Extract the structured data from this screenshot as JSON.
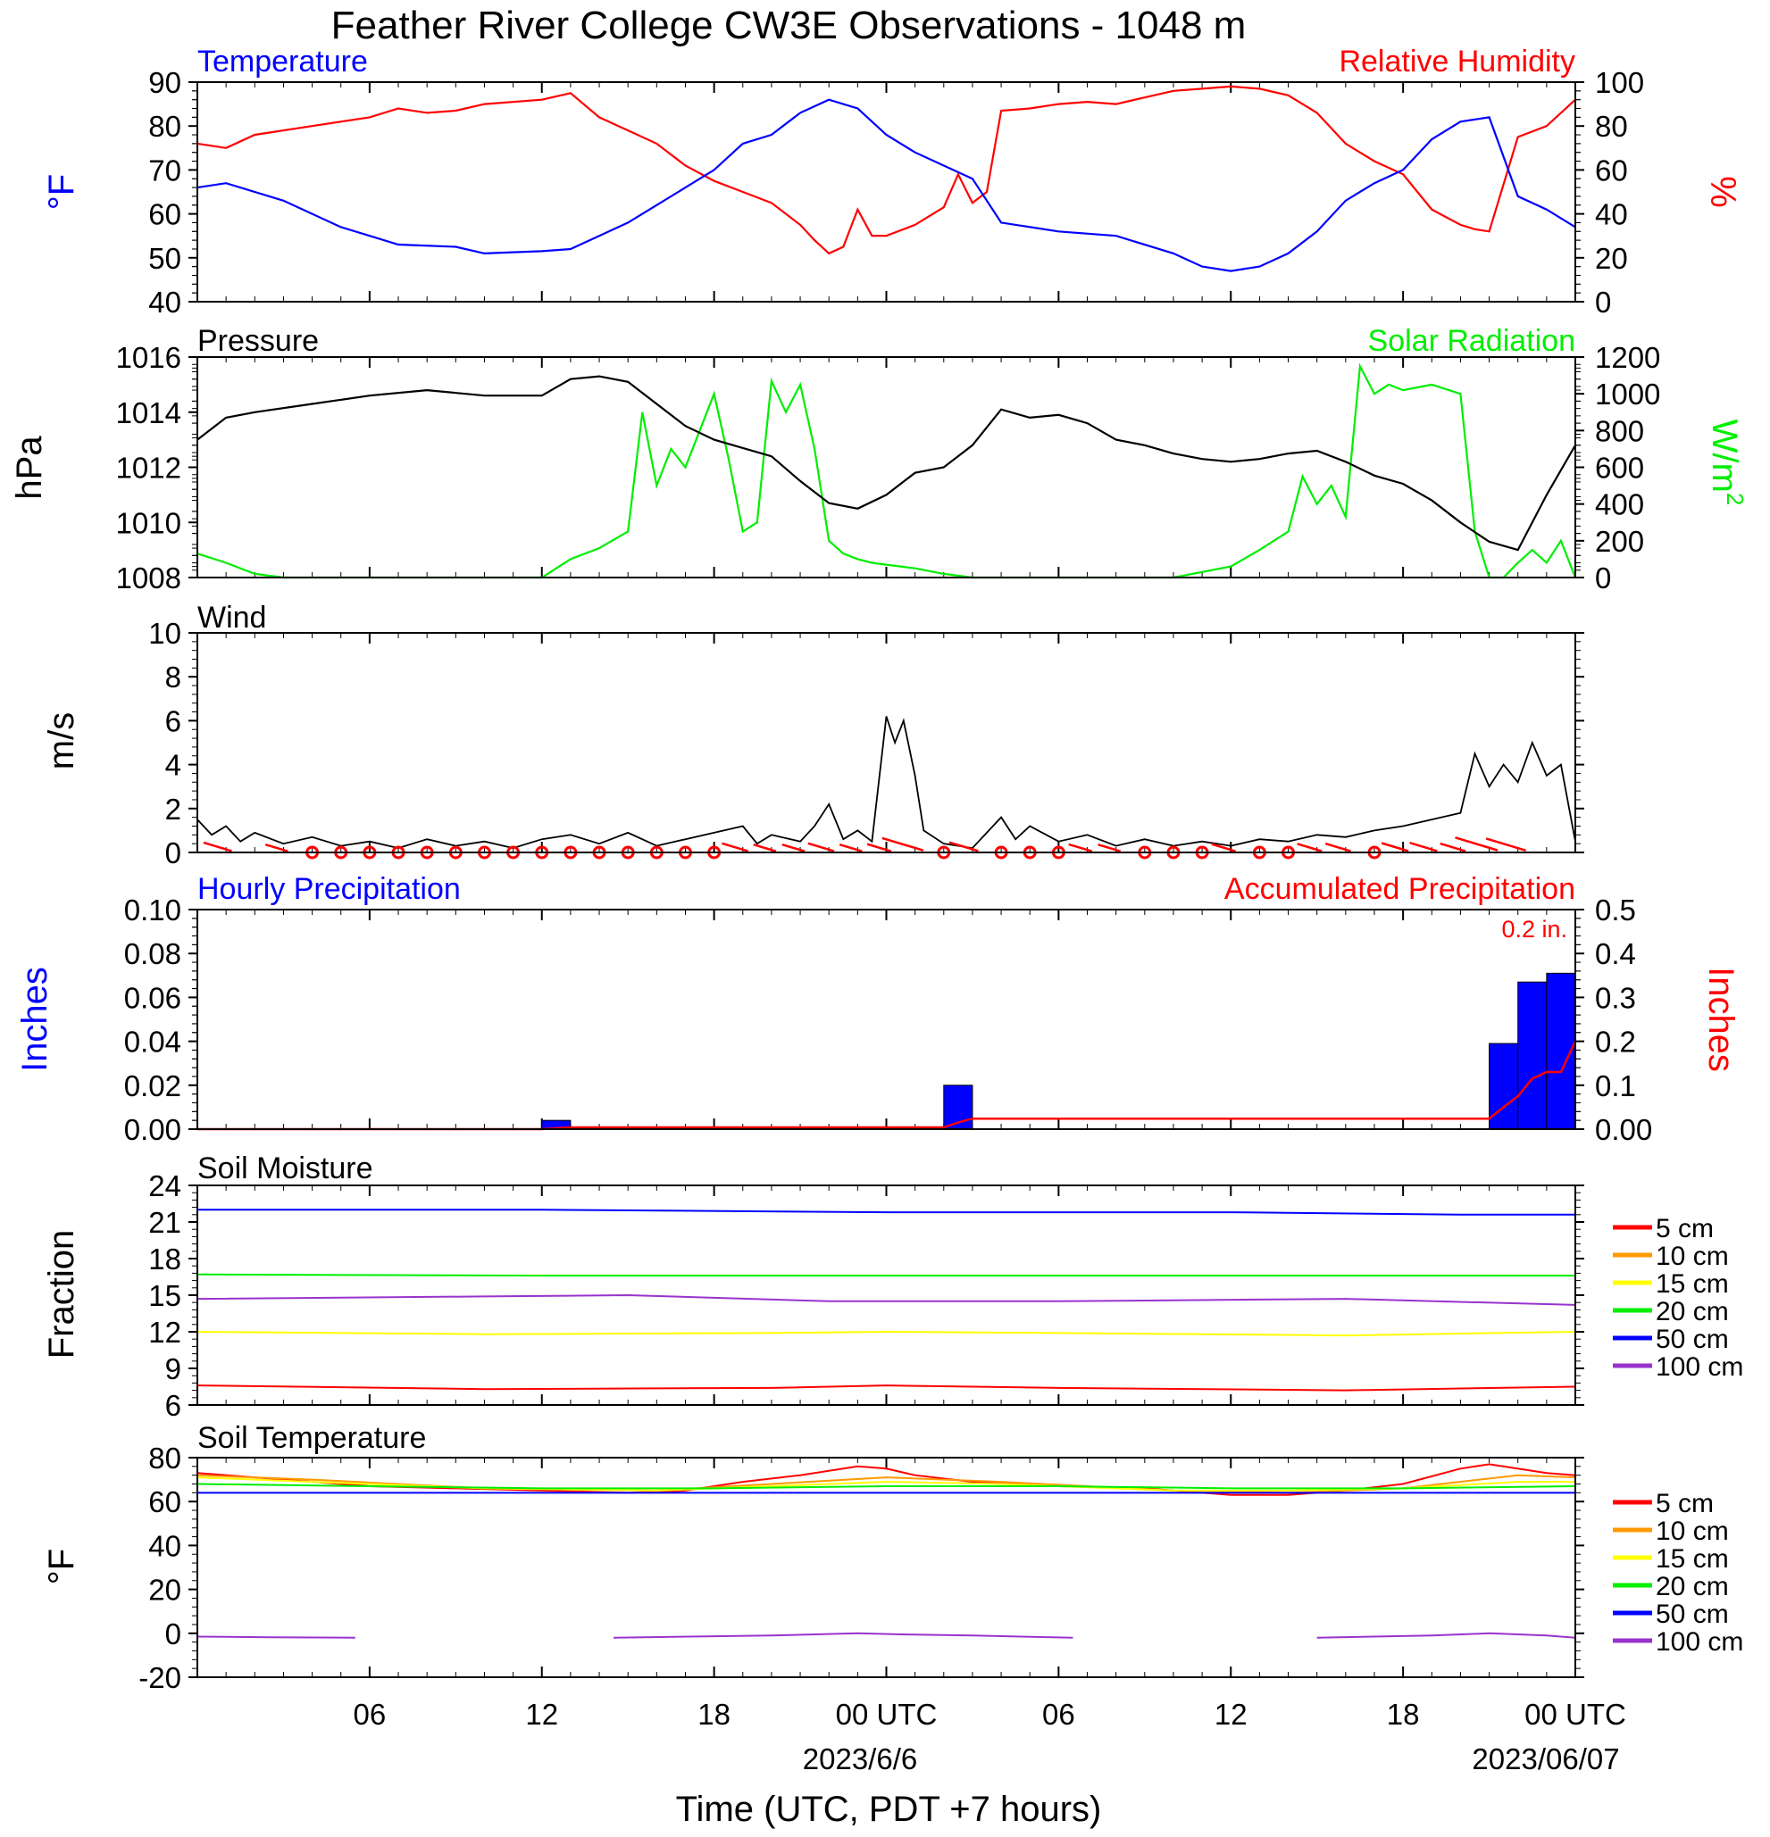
{
  "page_title": "Feather River College CW3E Observations - 1048 m",
  "xaxis": {
    "ticks": [
      "06",
      "12",
      "18",
      "00 UTC",
      "06",
      "12",
      "18",
      "00 UTC"
    ],
    "dates": [
      "2023/6/6",
      "2023/06/07"
    ],
    "label": "Time (UTC, PDT +7 hours)",
    "range_hours": [
      0,
      48
    ]
  },
  "legend_soil": [
    "5 cm",
    "10 cm",
    "15 cm",
    "20 cm",
    "50 cm",
    "100 cm"
  ],
  "colors": {
    "5cm": "#ff0000",
    "10cm": "#ff9900",
    "15cm": "#ffff00",
    "20cm": "#00ee00",
    "50cm": "#0000ff",
    "100cm": "#9933cc",
    "temperature": "#0000ff",
    "humidity": "#ff0000",
    "pressure": "#000000",
    "solar": "#00ee00",
    "wind": "#000000",
    "wind_barb": "#ff0000"
  },
  "chart_data": [
    {
      "type": "line",
      "title_left": "Temperature",
      "title_right": "Relative Humidity",
      "ylabel_left": "°F",
      "ylabel_right": "%",
      "ylim_left": [
        40,
        90
      ],
      "ylim_right": [
        0,
        100
      ],
      "yticks_left": [
        "40",
        "50",
        "60",
        "70",
        "80",
        "90"
      ],
      "yticks_right": [
        "0",
        "20",
        "40",
        "60",
        "80",
        "100"
      ],
      "series": [
        {
          "name": "Temperature",
          "axis": "left",
          "x": [
            0,
            1,
            3,
            5,
            6,
            7,
            9,
            10,
            12,
            13,
            14,
            15,
            16,
            17,
            18,
            19,
            20,
            21,
            22,
            23,
            24,
            25,
            26,
            27,
            28,
            30,
            32,
            34,
            35,
            36,
            37,
            38,
            39,
            40,
            41,
            42,
            43,
            44,
            45,
            46,
            47,
            48
          ],
          "y": [
            66,
            67,
            63,
            57,
            55,
            53,
            52.5,
            51,
            51.5,
            52,
            55,
            58,
            62,
            66,
            70,
            76,
            78,
            83,
            86,
            84,
            78,
            74,
            71,
            68,
            58,
            56,
            55,
            51,
            48,
            47,
            48,
            51,
            56,
            63,
            67,
            70,
            77,
            81,
            82,
            64,
            61,
            57
          ]
        },
        {
          "name": "Relative Humidity",
          "axis": "right",
          "x": [
            0,
            1,
            2,
            4,
            6,
            7,
            8,
            9,
            10,
            12,
            13,
            14,
            15,
            16,
            17,
            18,
            19,
            20,
            21,
            21.5,
            22,
            22.5,
            23,
            23.5,
            24,
            25,
            26,
            26.5,
            27,
            27.5,
            28,
            29,
            30,
            31,
            32,
            33,
            34,
            35,
            36,
            37,
            38,
            39,
            40,
            41,
            42,
            43,
            44,
            44.5,
            45,
            46,
            47,
            48
          ],
          "y": [
            72,
            70,
            76,
            80,
            84,
            88,
            86,
            87,
            90,
            92,
            95,
            84,
            78,
            72,
            62,
            55,
            50,
            45,
            35,
            28,
            22,
            25,
            42,
            30,
            30,
            35,
            43,
            58,
            45,
            50,
            87,
            88,
            90,
            91,
            90,
            93,
            96,
            97,
            98,
            97,
            94,
            86,
            72,
            64,
            58,
            42,
            35,
            33,
            32,
            75,
            80,
            92
          ]
        }
      ]
    },
    {
      "type": "line",
      "title_left": "Pressure",
      "title_right": "Solar Radiation",
      "ylabel_left": "hPa",
      "ylabel_right": "W/m",
      "ylabel_right_sup": "2",
      "ylim_left": [
        1008,
        1016
      ],
      "ylim_right": [
        0,
        1200
      ],
      "yticks_left": [
        "1008",
        "1010",
        "1012",
        "1014",
        "1016"
      ],
      "yticks_right": [
        "0",
        "200",
        "400",
        "600",
        "800",
        "1000",
        "1200"
      ],
      "series": [
        {
          "name": "Pressure",
          "axis": "left",
          "x": [
            0,
            1,
            2,
            4,
            6,
            8,
            10,
            12,
            13,
            14,
            15,
            16,
            17,
            18,
            19,
            20,
            21,
            22,
            23,
            24,
            25,
            26,
            27,
            28,
            29,
            30,
            31,
            32,
            33,
            34,
            35,
            36,
            37,
            38,
            39,
            40,
            41,
            42,
            43,
            44,
            45,
            46,
            47,
            48
          ],
          "y": [
            1013,
            1013.8,
            1014,
            1014.3,
            1014.6,
            1014.8,
            1014.6,
            1014.6,
            1015.2,
            1015.3,
            1015.1,
            1014.3,
            1013.5,
            1013,
            1012.7,
            1012.4,
            1011.5,
            1010.7,
            1010.5,
            1011,
            1011.8,
            1012.0,
            1012.8,
            1014.1,
            1013.8,
            1013.9,
            1013.6,
            1013.0,
            1012.8,
            1012.5,
            1012.3,
            1012.2,
            1012.3,
            1012.5,
            1012.6,
            1012.2,
            1011.7,
            1011.4,
            1010.8,
            1010.0,
            1009.3,
            1009.0,
            1011.0,
            1012.8
          ]
        },
        {
          "name": "Solar Radiation",
          "axis": "right",
          "x": [
            0,
            1,
            2,
            3,
            5,
            7,
            10,
            12,
            13,
            14,
            15,
            15.5,
            16,
            16.5,
            17,
            17.5,
            18,
            18.5,
            19,
            19.5,
            20,
            20.5,
            21,
            21.5,
            22,
            22.5,
            23,
            23.5,
            24,
            25,
            26,
            27,
            28,
            30,
            32,
            34,
            36,
            37,
            38,
            38.5,
            39,
            39.5,
            40,
            40.5,
            41,
            41.5,
            42,
            43,
            44,
            44.5,
            45,
            45.5,
            46,
            46.5,
            47,
            47.5,
            48
          ],
          "y": [
            130,
            80,
            20,
            0,
            0,
            0,
            0,
            0,
            100,
            160,
            250,
            900,
            500,
            700,
            600,
            800,
            1000,
            650,
            250,
            300,
            1070,
            900,
            1050,
            700,
            200,
            130,
            100,
            80,
            70,
            50,
            20,
            0,
            0,
            0,
            0,
            0,
            60,
            150,
            250,
            550,
            400,
            500,
            330,
            1150,
            1000,
            1050,
            1020,
            1050,
            1000,
            250,
            0,
            0,
            80,
            150,
            80,
            200,
            0
          ]
        }
      ]
    },
    {
      "type": "line",
      "title_left": "Wind",
      "ylabel_left": "m/s",
      "ylim_left": [
        0,
        10
      ],
      "yticks_left": [
        "0",
        "2",
        "4",
        "6",
        "8",
        "10"
      ],
      "series": [
        {
          "name": "Wind",
          "axis": "left",
          "x": [
            0,
            0.5,
            1,
            1.5,
            2,
            3,
            4,
            5,
            6,
            7,
            8,
            9,
            10,
            11,
            12,
            13,
            14,
            15,
            16,
            17,
            18,
            19,
            19.5,
            20,
            21,
            21.5,
            22,
            22.5,
            23,
            23.5,
            24,
            24.3,
            24.6,
            25,
            25.3,
            26,
            27,
            28,
            28.5,
            29,
            30,
            31,
            32,
            33,
            34,
            35,
            36,
            37,
            38,
            39,
            40,
            41,
            42,
            43,
            44,
            44.5,
            45,
            45.5,
            46,
            46.5,
            47,
            47.5,
            48
          ],
          "y": [
            1.5,
            0.8,
            1.2,
            0.5,
            0.9,
            0.4,
            0.7,
            0.3,
            0.5,
            0.2,
            0.6,
            0.3,
            0.5,
            0.2,
            0.6,
            0.8,
            0.4,
            0.9,
            0.3,
            0.6,
            0.9,
            1.2,
            0.4,
            0.8,
            0.5,
            1.2,
            2.2,
            0.6,
            1.0,
            0.5,
            6.2,
            5.0,
            6.0,
            3.5,
            1.0,
            0.4,
            0.2,
            1.6,
            0.6,
            1.2,
            0.5,
            0.8,
            0.3,
            0.6,
            0.3,
            0.5,
            0.3,
            0.6,
            0.5,
            0.8,
            0.7,
            1.0,
            1.2,
            1.5,
            1.8,
            4.5,
            3.0,
            4.0,
            3.2,
            5.0,
            3.5,
            4.0,
            0.5
          ]
        }
      ],
      "barbs_x": [
        1,
        3,
        4,
        5,
        6,
        7,
        8,
        9,
        10,
        11,
        12,
        13,
        14,
        15,
        16,
        17,
        18,
        19,
        20,
        21,
        22,
        23,
        24,
        25,
        26,
        27,
        28,
        29,
        30,
        31,
        32,
        33,
        34,
        35,
        36,
        37,
        38,
        39,
        40,
        41,
        42,
        43,
        44,
        45,
        46
      ],
      "barbs_speed": [
        1.2,
        0.4,
        0.2,
        0.1,
        0,
        0,
        0,
        0,
        0,
        0,
        0,
        0,
        0,
        0.2,
        0,
        0,
        0.3,
        0.9,
        0.4,
        0.4,
        0.9,
        0.4,
        0.6,
        3.0,
        0,
        1.3,
        0,
        0,
        0,
        0.5,
        0.4,
        0,
        0,
        0,
        0.6,
        0,
        0,
        0.7,
        0.8,
        0,
        1.0,
        1.1,
        0.8,
        3.2,
        2.8
      ]
    },
    {
      "type": "bar",
      "title_left": "Hourly Precipitation",
      "title_right": "Accumulated Precipitation",
      "annotation": "0.2 in.",
      "ylabel_left": "Inches",
      "ylabel_right": "Inches",
      "ylim_left": [
        0,
        0.1
      ],
      "ylim_right": [
        0,
        0.5
      ],
      "yticks_left": [
        "0.00",
        "0.02",
        "0.04",
        "0.06",
        "0.08",
        "0.10"
      ],
      "yticks_right": [
        "0.00",
        "0.1",
        "0.2",
        "0.3",
        "0.4",
        "0.5"
      ],
      "bars": {
        "name": "Hourly Precipitation",
        "hour": [
          12,
          26,
          45,
          46,
          47
        ],
        "values": [
          0.004,
          0.02,
          0.039,
          0.067,
          0.071
        ]
      },
      "accumulated": {
        "name": "Accumulated Precipitation",
        "x": [
          0,
          12,
          13,
          26,
          26.5,
          27,
          45,
          45.5,
          46,
          46.5,
          47,
          47.5,
          48
        ],
        "y": [
          0,
          0,
          0.004,
          0.004,
          0.015,
          0.024,
          0.024,
          0.05,
          0.075,
          0.115,
          0.13,
          0.13,
          0.2
        ]
      }
    },
    {
      "type": "line",
      "title_left": "Soil Moisture",
      "ylabel_left": "Fraction",
      "ylim_left": [
        6,
        24
      ],
      "yticks_left": [
        "6",
        "9",
        "12",
        "15",
        "18",
        "21",
        "24"
      ],
      "series": [
        {
          "name": "5 cm",
          "x": [
            0,
            10,
            20,
            24,
            30,
            40,
            48
          ],
          "y": [
            7.6,
            7.3,
            7.4,
            7.6,
            7.4,
            7.2,
            7.5
          ]
        },
        {
          "name": "15 cm",
          "x": [
            0,
            10,
            20,
            24,
            30,
            40,
            48
          ],
          "y": [
            12.0,
            11.8,
            11.9,
            12.0,
            11.9,
            11.7,
            12.0
          ]
        },
        {
          "name": "100 cm",
          "x": [
            0,
            10,
            15,
            22,
            30,
            40,
            48
          ],
          "y": [
            14.7,
            14.9,
            15.0,
            14.5,
            14.5,
            14.7,
            14.2
          ]
        },
        {
          "name": "20 cm",
          "x": [
            0,
            12,
            24,
            36,
            48
          ],
          "y": [
            16.7,
            16.6,
            16.6,
            16.6,
            16.6
          ]
        },
        {
          "name": "50 cm",
          "x": [
            0,
            12,
            24,
            36,
            44,
            48
          ],
          "y": [
            22.0,
            22.0,
            21.8,
            21.8,
            21.6,
            21.6
          ]
        }
      ]
    },
    {
      "type": "line",
      "title_left": "Soil Temperature",
      "ylabel_left": "°F",
      "ylim_left": [
        -20,
        80
      ],
      "yticks_left": [
        "-20",
        "0",
        "20",
        "40",
        "60",
        "80"
      ],
      "series": [
        {
          "name": "5 cm",
          "x": [
            0,
            3,
            6,
            9,
            12,
            15,
            17,
            19,
            21,
            23,
            24,
            25,
            27,
            30,
            33,
            36,
            38,
            40,
            42,
            44,
            45,
            47,
            48
          ],
          "y": [
            73,
            70,
            67,
            66,
            65,
            64,
            65,
            69,
            72,
            76,
            75,
            72,
            69,
            67,
            66,
            63,
            63,
            65,
            68,
            75,
            77,
            73,
            72
          ]
        },
        {
          "name": "10 cm",
          "x": [
            0,
            4,
            10,
            16,
            20,
            24,
            28,
            34,
            38,
            42,
            46,
            48
          ],
          "y": [
            72,
            70,
            66,
            65,
            68,
            71,
            69,
            65,
            64,
            66,
            72,
            71
          ]
        },
        {
          "name": "15 cm",
          "x": [
            0,
            4,
            10,
            16,
            20,
            24,
            28,
            34,
            38,
            42,
            46,
            48
          ],
          "y": [
            71,
            69,
            66,
            65,
            67,
            69,
            68,
            65,
            65,
            66,
            69,
            69
          ]
        },
        {
          "name": "20 cm",
          "x": [
            0,
            6,
            12,
            18,
            24,
            30,
            36,
            42,
            48
          ],
          "y": [
            68,
            67,
            66,
            66,
            67,
            67,
            66,
            66,
            67
          ]
        },
        {
          "name": "50 cm",
          "x": [
            0,
            12,
            24,
            36,
            48
          ],
          "y": [
            64,
            64,
            64,
            64,
            64
          ]
        },
        {
          "name": "100 cm",
          "segments": [
            {
              "x": [
                0,
                2.5,
                5.5
              ],
              "y": [
                -1.5,
                -1.8,
                -2
              ]
            },
            {
              "x": [
                14.5,
                20,
                23,
                24.5,
                27,
                30.5
              ],
              "y": [
                -2,
                -1,
                0,
                -0.5,
                -1,
                -2
              ]
            },
            {
              "x": [
                39,
                43,
                45,
                47,
                48
              ],
              "y": [
                -2,
                -1,
                0,
                -1,
                -2
              ]
            }
          ]
        }
      ]
    }
  ]
}
